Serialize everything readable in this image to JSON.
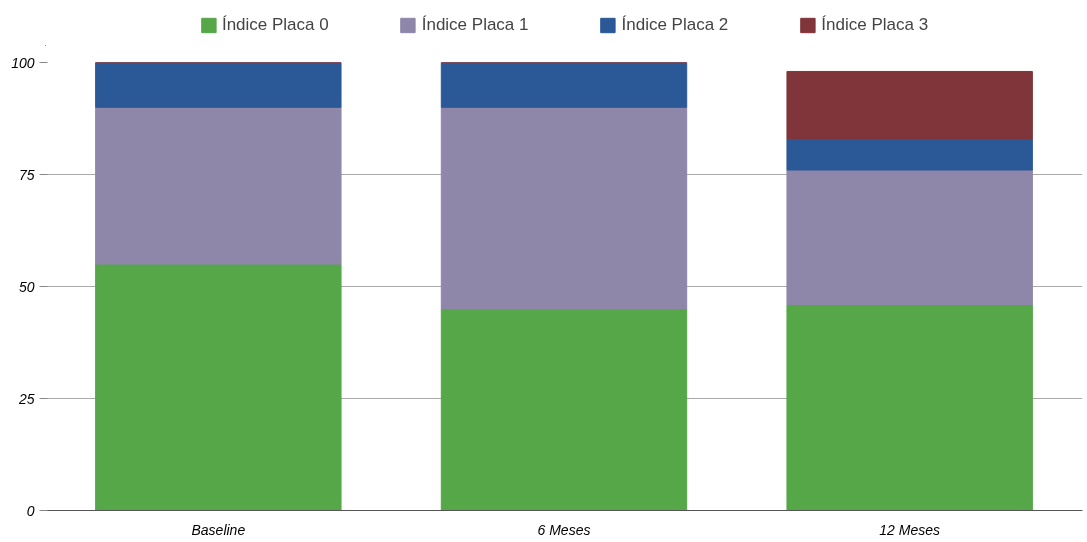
{
  "chart_data": {
    "type": "bar",
    "stacked": true,
    "categories": [
      "Baseline",
      "6 Meses",
      "12 Meses"
    ],
    "series": [
      {
        "name": "Índice Placa 0",
        "color": "#55a748",
        "values": [
          55,
          45,
          46
        ]
      },
      {
        "name": "Índice Placa 1",
        "color": "#8e87aa",
        "values": [
          35,
          45,
          30
        ]
      },
      {
        "name": "Índice Placa 2",
        "color": "#2b5897",
        "values": [
          10,
          10,
          7
        ]
      },
      {
        "name": "Índice Placa 3",
        "color": "#80353a",
        "values": [
          0,
          0,
          15
        ]
      }
    ],
    "ylim": [
      0,
      100
    ],
    "yticks": [
      0,
      25,
      50,
      75,
      100
    ],
    "grid": "y",
    "legend": "top"
  }
}
